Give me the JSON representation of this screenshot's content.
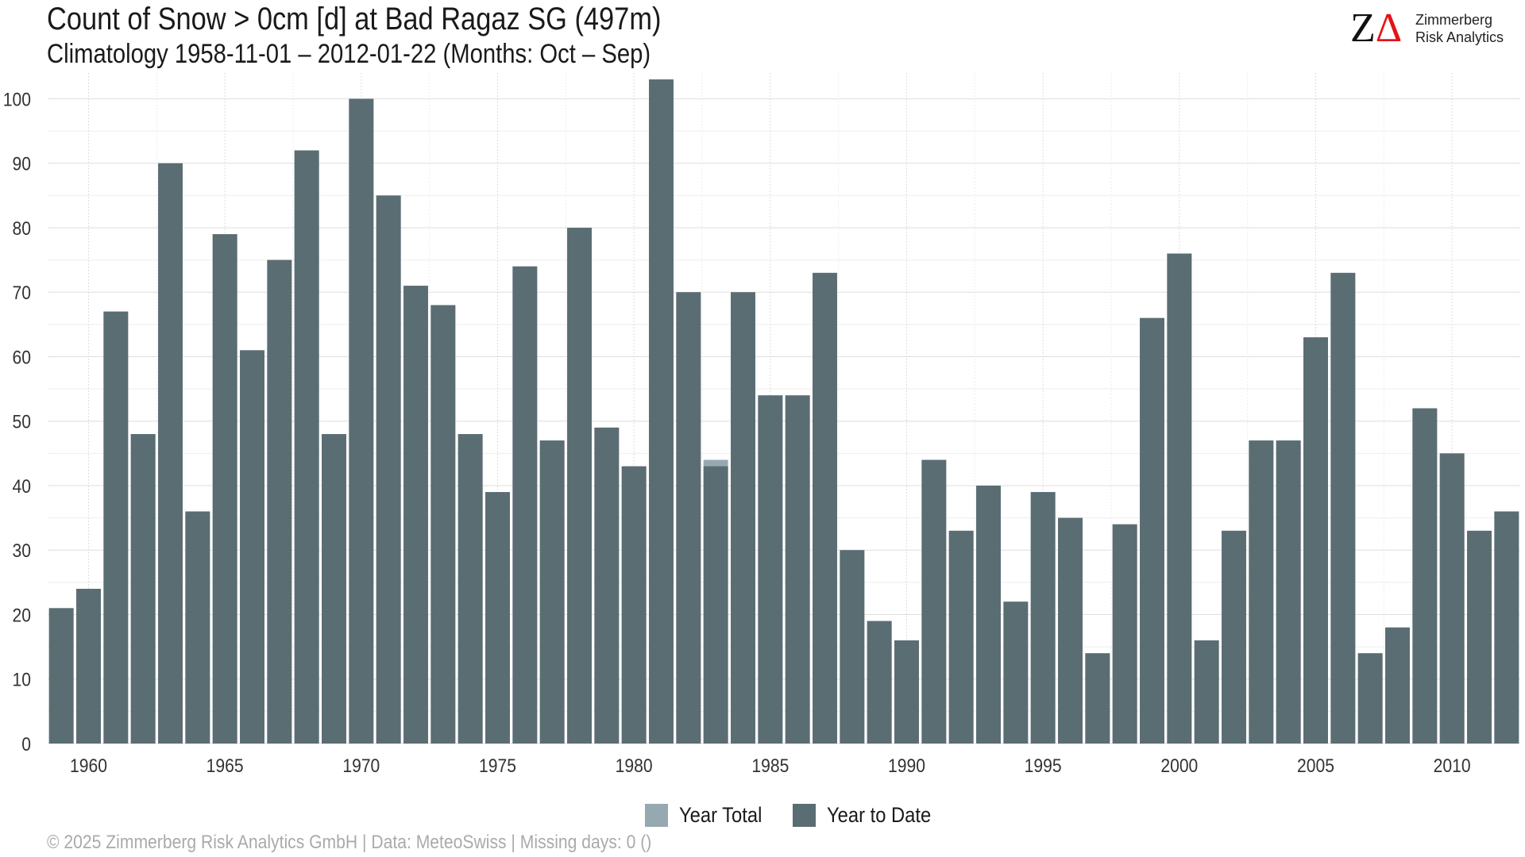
{
  "header": {
    "title": "Count of Snow > 0cm [d] at Bad Ragaz  SG (497m)",
    "subtitle": "Climatology 1958-11-01 – 2012-01-22 (Months: Oct – Sep)"
  },
  "logo": {
    "mark": "Z",
    "mark_delta": "Δ",
    "line1": "Zimmerberg",
    "line2": "Risk Analytics"
  },
  "footer": {
    "text": "©  2025 Zimmerberg Risk Analytics GmbH | Data: MeteoSwiss | Missing days: 0 ()"
  },
  "chart_data": {
    "type": "bar",
    "x": [
      1959,
      1960,
      1961,
      1962,
      1963,
      1964,
      1965,
      1966,
      1967,
      1968,
      1969,
      1970,
      1971,
      1972,
      1973,
      1974,
      1975,
      1976,
      1977,
      1978,
      1979,
      1980,
      1981,
      1982,
      1983,
      1984,
      1985,
      1986,
      1987,
      1988,
      1989,
      1990,
      1991,
      1992,
      1993,
      1994,
      1995,
      1996,
      1997,
      1998,
      1999,
      2000,
      2001,
      2002,
      2003,
      2004,
      2005,
      2006,
      2007,
      2008,
      2009,
      2010,
      2011,
      2012
    ],
    "series": [
      {
        "name": "Year Total",
        "color": "#97a9b0",
        "values": [
          21,
          24,
          67,
          48,
          90,
          36,
          79,
          61,
          75,
          92,
          48,
          100,
          85,
          71,
          68,
          48,
          39,
          74,
          47,
          80,
          49,
          43,
          103,
          70,
          44,
          70,
          54,
          54,
          73,
          30,
          19,
          16,
          44,
          33,
          40,
          22,
          39,
          35,
          14,
          34,
          66,
          76,
          16,
          33,
          47,
          47,
          63,
          73,
          14,
          18,
          52,
          45,
          33,
          36
        ]
      },
      {
        "name": "Year to Date",
        "color": "#5a6d73",
        "values": [
          21,
          24,
          67,
          48,
          90,
          36,
          79,
          61,
          75,
          92,
          48,
          100,
          85,
          71,
          68,
          48,
          39,
          74,
          47,
          80,
          49,
          43,
          103,
          70,
          43,
          70,
          54,
          54,
          73,
          30,
          19,
          16,
          44,
          33,
          40,
          22,
          39,
          35,
          14,
          34,
          66,
          76,
          16,
          33,
          47,
          47,
          63,
          73,
          14,
          18,
          52,
          45,
          33,
          36
        ]
      }
    ],
    "x_ticks": [
      1960,
      1965,
      1970,
      1975,
      1980,
      1985,
      1990,
      1995,
      2000,
      2005,
      2010
    ],
    "y_ticks": [
      0,
      10,
      20,
      30,
      40,
      50,
      60,
      70,
      80,
      90,
      100
    ],
    "xlim": [
      1958.5,
      2012.5
    ],
    "ylim": [
      0,
      104
    ],
    "grid": true,
    "legend_position": "bottom"
  }
}
